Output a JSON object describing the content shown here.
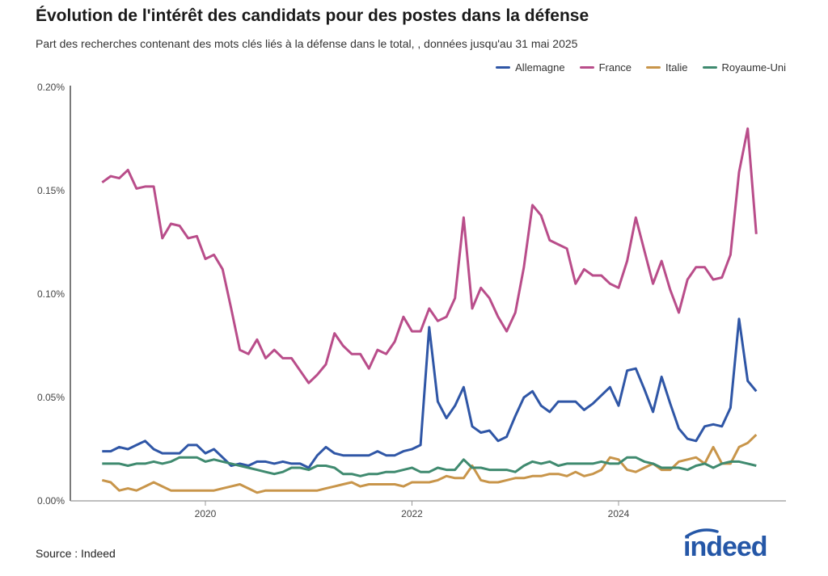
{
  "title": "Évolution de l'intérêt des candidats pour des postes dans la défense",
  "subtitle": "Part des recherches contenant des mots clés liés à la défense dans le total, , données jusqu'au 31 mai 2025",
  "source": "Source : Indeed",
  "logo_text": "indeed",
  "chart_data": {
    "type": "line",
    "title": "Évolution de l'intérêt des candidats pour des postes dans la défense",
    "xlabel": "",
    "ylabel": "",
    "x_start": "2019-01",
    "x_end": "2025-05",
    "x_frequency": "monthly",
    "x_ticks": [
      "2020",
      "2022",
      "2024"
    ],
    "y_ticks": [
      "0.00%",
      "0.05%",
      "0.10%",
      "0.15%",
      "0.20%"
    ],
    "ylim": [
      0,
      0.2
    ],
    "y_unit": "%",
    "grid": false,
    "legend_position": "top-right",
    "series": [
      {
        "name": "Allemagne",
        "color": "#2f56a6",
        "values": [
          0.024,
          0.024,
          0.026,
          0.025,
          0.027,
          0.029,
          0.025,
          0.023,
          0.023,
          0.023,
          0.027,
          0.027,
          0.023,
          0.025,
          0.021,
          0.017,
          0.018,
          0.017,
          0.019,
          0.019,
          0.018,
          0.019,
          0.018,
          0.018,
          0.016,
          0.022,
          0.026,
          0.023,
          0.022,
          0.022,
          0.022,
          0.022,
          0.024,
          0.022,
          0.022,
          0.024,
          0.025,
          0.027,
          0.084,
          0.048,
          0.04,
          0.046,
          0.055,
          0.036,
          0.033,
          0.034,
          0.029,
          0.031,
          0.041,
          0.05,
          0.053,
          0.046,
          0.043,
          0.048,
          0.048,
          0.048,
          0.044,
          0.047,
          0.051,
          0.055,
          0.046,
          0.063,
          0.064,
          0.054,
          0.043,
          0.06,
          0.047,
          0.035,
          0.03,
          0.029,
          0.036,
          0.037,
          0.036,
          0.045,
          0.088,
          0.058,
          0.053
        ]
      },
      {
        "name": "France",
        "color": "#b94d8a",
        "values": [
          0.154,
          0.157,
          0.156,
          0.16,
          0.151,
          0.152,
          0.152,
          0.127,
          0.134,
          0.133,
          0.127,
          0.128,
          0.117,
          0.119,
          0.112,
          0.093,
          0.073,
          0.071,
          0.078,
          0.069,
          0.073,
          0.069,
          0.069,
          0.063,
          0.057,
          0.061,
          0.066,
          0.081,
          0.075,
          0.071,
          0.071,
          0.064,
          0.073,
          0.071,
          0.077,
          0.089,
          0.082,
          0.082,
          0.093,
          0.087,
          0.089,
          0.098,
          0.137,
          0.093,
          0.103,
          0.098,
          0.089,
          0.082,
          0.091,
          0.113,
          0.143,
          0.138,
          0.126,
          0.124,
          0.122,
          0.105,
          0.112,
          0.109,
          0.109,
          0.105,
          0.103,
          0.116,
          0.137,
          0.121,
          0.105,
          0.116,
          0.102,
          0.091,
          0.107,
          0.113,
          0.113,
          0.107,
          0.108,
          0.119,
          0.159,
          0.18,
          0.129
        ]
      },
      {
        "name": "Italie",
        "color": "#c8954a",
        "values": [
          0.01,
          0.009,
          0.005,
          0.006,
          0.005,
          0.007,
          0.009,
          0.007,
          0.005,
          0.005,
          0.005,
          0.005,
          0.005,
          0.005,
          0.006,
          0.007,
          0.008,
          0.006,
          0.004,
          0.005,
          0.005,
          0.005,
          0.005,
          0.005,
          0.005,
          0.005,
          0.006,
          0.007,
          0.008,
          0.009,
          0.007,
          0.008,
          0.008,
          0.008,
          0.008,
          0.007,
          0.009,
          0.009,
          0.009,
          0.01,
          0.012,
          0.011,
          0.011,
          0.017,
          0.01,
          0.009,
          0.009,
          0.01,
          0.011,
          0.011,
          0.012,
          0.012,
          0.013,
          0.013,
          0.012,
          0.014,
          0.012,
          0.013,
          0.015,
          0.021,
          0.02,
          0.015,
          0.014,
          0.016,
          0.018,
          0.015,
          0.015,
          0.019,
          0.02,
          0.021,
          0.018,
          0.026,
          0.018,
          0.018,
          0.026,
          0.028,
          0.032
        ]
      },
      {
        "name": "Royaume-Uni",
        "color": "#3f8a6f",
        "values": [
          0.018,
          0.018,
          0.018,
          0.017,
          0.018,
          0.018,
          0.019,
          0.018,
          0.019,
          0.021,
          0.021,
          0.021,
          0.019,
          0.02,
          0.019,
          0.018,
          0.017,
          0.016,
          0.015,
          0.014,
          0.013,
          0.014,
          0.016,
          0.016,
          0.015,
          0.017,
          0.017,
          0.016,
          0.013,
          0.013,
          0.012,
          0.013,
          0.013,
          0.014,
          0.014,
          0.015,
          0.016,
          0.014,
          0.014,
          0.016,
          0.015,
          0.015,
          0.02,
          0.016,
          0.016,
          0.015,
          0.015,
          0.015,
          0.014,
          0.017,
          0.019,
          0.018,
          0.019,
          0.017,
          0.018,
          0.018,
          0.018,
          0.018,
          0.019,
          0.018,
          0.018,
          0.021,
          0.021,
          0.019,
          0.018,
          0.016,
          0.016,
          0.016,
          0.015,
          0.017,
          0.018,
          0.016,
          0.018,
          0.019,
          0.019,
          0.018,
          0.017
        ]
      }
    ]
  }
}
